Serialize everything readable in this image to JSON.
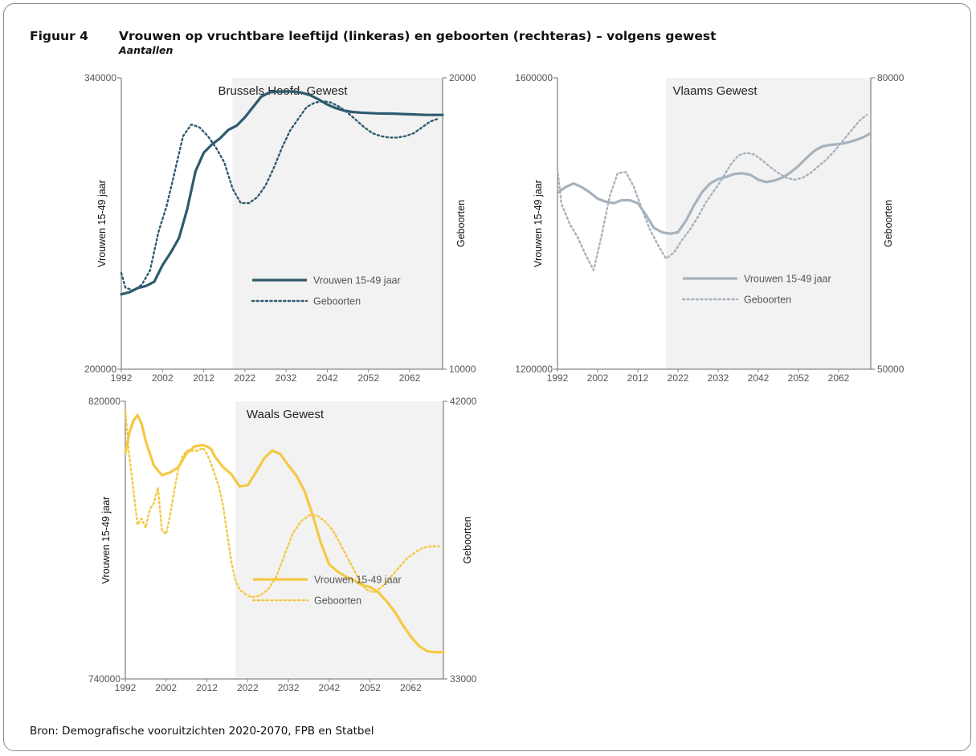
{
  "figure": {
    "label": "Figuur 4",
    "title": "Vrouwen op vruchtbare leeftijd (linkeras) en geboorten (rechteras) – volgens gewest",
    "subtitle": "Aantallen",
    "source": "Bron: Demografische vooruitzichten 2020-2070, FPB en Statbel"
  },
  "chart_data": [
    {
      "type": "line",
      "title": "Brussels Hoofd. Gewest",
      "color": "#2e5b6e",
      "ylabel": "Vrouwen 15-49 jaar",
      "y2label": "Geboorten",
      "xlim": [
        1992,
        2070
      ],
      "ylim": [
        200000,
        340000
      ],
      "y2lim": [
        10000,
        20000
      ],
      "xticks": [
        "1992",
        "2002",
        "2012",
        "2022",
        "2032",
        "2042",
        "2052",
        "2062"
      ],
      "yticks": [
        "200000",
        "340000"
      ],
      "y2ticks": [
        "10000",
        "20000"
      ],
      "shaded_from": 2019,
      "legend_position": "center-right",
      "series": [
        {
          "name": "Vrouwen 15-49 jaar",
          "axis": "left",
          "style": "solid",
          "x": [
            1992,
            1994,
            1996,
            1998,
            2000,
            2002,
            2004,
            2006,
            2008,
            2010,
            2012,
            2014,
            2016,
            2018,
            2020,
            2022,
            2024,
            2026,
            2028,
            2030,
            2032,
            2034,
            2036,
            2038,
            2040,
            2042,
            2044,
            2046,
            2048,
            2050,
            2054,
            2058,
            2062,
            2066,
            2070
          ],
          "y": [
            236000,
            237000,
            239000,
            240000,
            242000,
            250000,
            256000,
            263000,
            277000,
            295000,
            304000,
            308000,
            311000,
            315000,
            317000,
            321000,
            326000,
            331000,
            333000,
            333400,
            333500,
            333400,
            332800,
            331500,
            329500,
            327200,
            325500,
            324300,
            323600,
            323300,
            322900,
            322800,
            322500,
            322200,
            322200
          ]
        },
        {
          "name": "Geboorten",
          "axis": "right",
          "style": "dotted",
          "x": [
            1992,
            1993,
            1995,
            1997,
            1999,
            2001,
            2003,
            2005,
            2007,
            2009,
            2011,
            2013,
            2015,
            2017,
            2019,
            2021,
            2023,
            2025,
            2027,
            2029,
            2031,
            2033,
            2035,
            2037,
            2039,
            2041,
            2043,
            2045,
            2047,
            2049,
            2051,
            2053,
            2055,
            2057,
            2059,
            2061,
            2063,
            2065,
            2067,
            2069
          ],
          "y": [
            13300,
            12800,
            12700,
            12900,
            13400,
            14700,
            15600,
            16800,
            18000,
            18400,
            18300,
            18000,
            17600,
            17100,
            16200,
            15700,
            15700,
            15900,
            16300,
            16900,
            17600,
            18200,
            18600,
            19000,
            19150,
            19200,
            19150,
            19000,
            18800,
            18550,
            18300,
            18100,
            18000,
            17950,
            17950,
            18000,
            18100,
            18300,
            18500,
            18600
          ]
        }
      ]
    },
    {
      "type": "line",
      "title": "Vlaams Gewest",
      "color": "#a7b2bd",
      "ylabel": "Vrouwen 15-49 jaar",
      "y2label": "Geboorten",
      "xlim": [
        1992,
        2070
      ],
      "ylim": [
        1200000,
        1600000
      ],
      "y2lim": [
        50000,
        80000
      ],
      "xticks": [
        "1992",
        "2002",
        "2012",
        "2022",
        "2032",
        "2042",
        "2052",
        "2062"
      ],
      "yticks": [
        "1200000",
        "1600000"
      ],
      "y2ticks": [
        "50000",
        "80000"
      ],
      "shaded_from": 2019,
      "legend_position": "center-right",
      "series": [
        {
          "name": "Vrouwen 15-49 jaar",
          "axis": "left",
          "style": "solid",
          "x": [
            1992,
            1994,
            1996,
            1998,
            2000,
            2002,
            2004,
            2006,
            2008,
            2010,
            2012,
            2014,
            2016,
            2018,
            2020,
            2022,
            2024,
            2026,
            2028,
            2030,
            2032,
            2034,
            2036,
            2038,
            2040,
            2042,
            2044,
            2046,
            2048,
            2050,
            2052,
            2054,
            2056,
            2058,
            2060,
            2062,
            2064,
            2066,
            2068,
            2070
          ],
          "y": [
            1442000,
            1450000,
            1455000,
            1450000,
            1443000,
            1434000,
            1430000,
            1428000,
            1432000,
            1432000,
            1428000,
            1412000,
            1394000,
            1388000,
            1386000,
            1388000,
            1404000,
            1425000,
            1443000,
            1455000,
            1461000,
            1464000,
            1468000,
            1469000,
            1467000,
            1460000,
            1457000,
            1459000,
            1463000,
            1470000,
            1479000,
            1490000,
            1500000,
            1506000,
            1508000,
            1509000,
            1511000,
            1514000,
            1518000,
            1524000
          ]
        },
        {
          "name": "Geboorten",
          "axis": "right",
          "style": "dotted",
          "x": [
            1992,
            1993,
            1995,
            1997,
            1999,
            2001,
            2003,
            2005,
            2007,
            2009,
            2011,
            2013,
            2015,
            2017,
            2019,
            2021,
            2023,
            2025,
            2027,
            2029,
            2031,
            2033,
            2035,
            2037,
            2039,
            2041,
            2043,
            2045,
            2047,
            2049,
            2051,
            2053,
            2055,
            2057,
            2059,
            2061,
            2063,
            2065,
            2067,
            2069
          ],
          "y": [
            70600,
            67000,
            65000,
            63600,
            61800,
            60200,
            63800,
            67800,
            70200,
            70300,
            68800,
            66500,
            64400,
            62800,
            61400,
            62000,
            63300,
            64400,
            65700,
            67200,
            68400,
            69600,
            71000,
            72000,
            72300,
            72100,
            71500,
            70800,
            70200,
            69700,
            69500,
            69700,
            70200,
            70900,
            71600,
            72500,
            73500,
            74500,
            75500,
            76200
          ]
        }
      ]
    },
    {
      "type": "line",
      "title": "Waals Gewest",
      "color": "#f5c842",
      "ylabel": "Vrouwen 15-49 jaar",
      "y2label": "Geboorten",
      "xlim": [
        1992,
        2070
      ],
      "ylim": [
        740000,
        820000
      ],
      "y2lim": [
        33000,
        42000
      ],
      "xticks": [
        "1992",
        "2002",
        "2012",
        "2022",
        "2032",
        "2042",
        "2052",
        "2062"
      ],
      "yticks": [
        "740000",
        "820000"
      ],
      "y2ticks": [
        "33000",
        "42000"
      ],
      "shaded_from": 2019,
      "legend_position": "bottom-right",
      "series": [
        {
          "name": "Vrouwen 15-49 jaar",
          "axis": "left",
          "style": "solid",
          "x": [
            1992,
            1993,
            1994,
            1995,
            1996,
            1997,
            1999,
            2001,
            2003,
            2005,
            2007,
            2009,
            2011,
            2012,
            2013,
            2014,
            2016,
            2018,
            2020,
            2022,
            2024,
            2026,
            2028,
            2030,
            2032,
            2034,
            2036,
            2038,
            2040,
            2042,
            2044,
            2046,
            2048,
            2050,
            2052,
            2054,
            2056,
            2058,
            2060,
            2062,
            2064,
            2066,
            2068,
            2070
          ],
          "y": [
            805000,
            811000,
            814500,
            816000,
            813500,
            808500,
            801500,
            798700,
            799500,
            801000,
            805000,
            807000,
            807400,
            807000,
            806300,
            804000,
            801000,
            799000,
            795500,
            795800,
            799500,
            803500,
            805800,
            804800,
            801500,
            798500,
            794000,
            787000,
            779000,
            773000,
            771000,
            769500,
            768500,
            767000,
            766500,
            765000,
            762500,
            759500,
            755600,
            752200,
            749500,
            748000,
            747700,
            747700
          ]
        },
        {
          "name": "Geboorten",
          "axis": "right",
          "style": "dotted",
          "x": [
            1992,
            1993,
            1994,
            1995,
            1996,
            1997,
            1998,
            1999,
            2000,
            2001,
            2002,
            2003,
            2004,
            2005,
            2006,
            2007,
            2008,
            2009,
            2010,
            2011,
            2012,
            2013,
            2014,
            2015,
            2016,
            2017,
            2018,
            2019,
            2020,
            2021,
            2022,
            2023,
            2025,
            2027,
            2029,
            2031,
            2033,
            2035,
            2037,
            2039,
            2041,
            2043,
            2045,
            2047,
            2049,
            2051,
            2053,
            2055,
            2057,
            2059,
            2061,
            2063,
            2065,
            2067,
            2069
          ],
          "y": [
            41700,
            40200,
            39100,
            38000,
            38200,
            37900,
            38500,
            38700,
            39200,
            37800,
            37700,
            38300,
            39100,
            39800,
            40200,
            40400,
            40400,
            40400,
            40400,
            40500,
            40300,
            40000,
            39600,
            39200,
            38600,
            37700,
            36800,
            36200,
            35900,
            35800,
            35700,
            35650,
            35700,
            35900,
            36300,
            37000,
            37700,
            38100,
            38300,
            38300,
            38100,
            37800,
            37300,
            36800,
            36300,
            35900,
            35800,
            36000,
            36300,
            36600,
            36900,
            37100,
            37250,
            37300,
            37300
          ]
        }
      ]
    }
  ]
}
